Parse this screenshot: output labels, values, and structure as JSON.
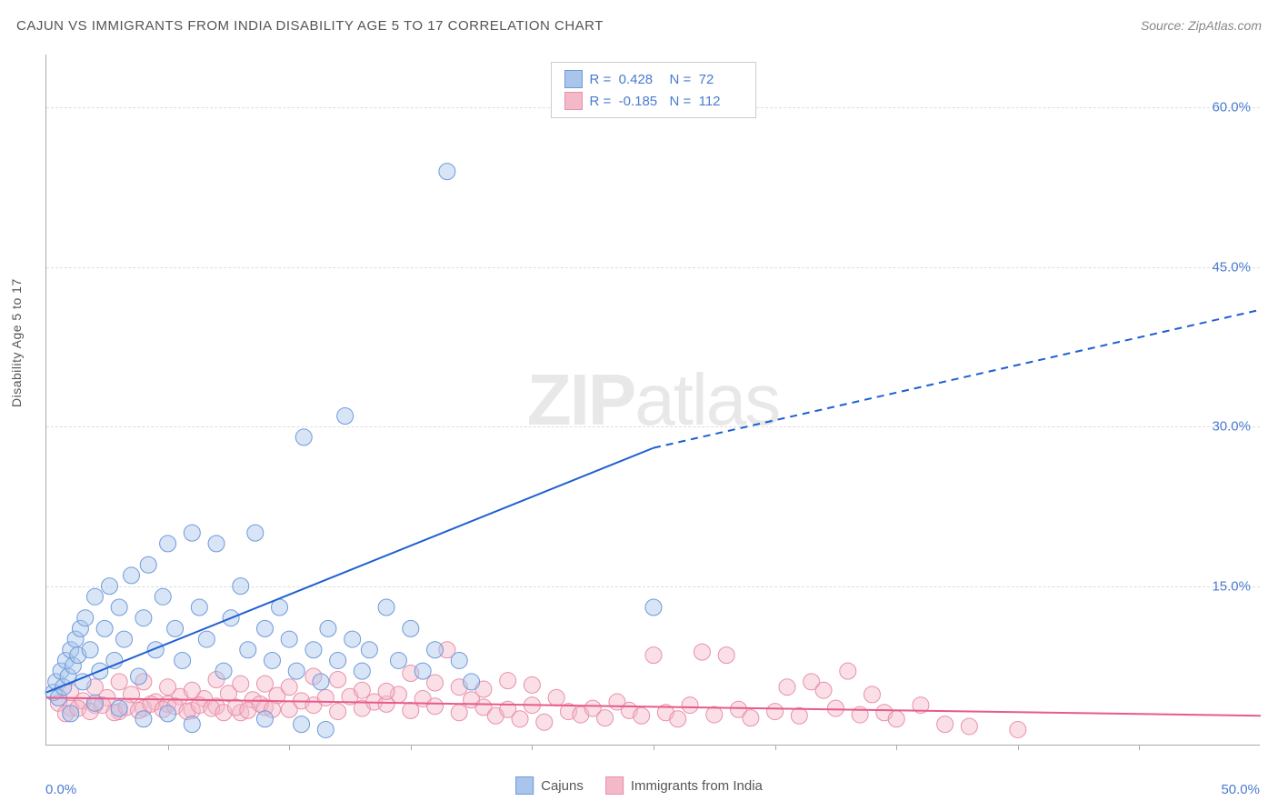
{
  "title": "CAJUN VS IMMIGRANTS FROM INDIA DISABILITY AGE 5 TO 17 CORRELATION CHART",
  "source_label": "Source:",
  "source_value": "ZipAtlas.com",
  "y_axis_label": "Disability Age 5 to 17",
  "watermark": {
    "part1": "ZIP",
    "part2": "atlas"
  },
  "chart": {
    "type": "scatter",
    "background_color": "#ffffff",
    "grid_color": "#dddddd",
    "axis_color": "#aaaaaa",
    "tick_label_color": "#4a7bd0",
    "xlim": [
      0,
      50
    ],
    "ylim": [
      0,
      65
    ],
    "y_ticks": [
      15,
      30,
      45,
      60
    ],
    "y_tick_labels": [
      "15.0%",
      "30.0%",
      "45.0%",
      "60.0%"
    ],
    "x_ticks": [
      5,
      10,
      15,
      20,
      25,
      30,
      35,
      40,
      45
    ],
    "x_label_min": "0.0%",
    "x_label_max": "50.0%",
    "marker_radius": 9,
    "marker_opacity": 0.45,
    "series": [
      {
        "name": "Cajuns",
        "color_fill": "#a9c5ec",
        "color_stroke": "#6f9ad8",
        "r_value": "0.428",
        "n_value": "72",
        "trend": {
          "color": "#1f5fd0",
          "width": 2,
          "x1": 0,
          "y1": 5.0,
          "x_solid_end": 25,
          "y_solid_end": 28.0,
          "x2": 50,
          "y2": 41.0
        },
        "points": [
          [
            0.3,
            5
          ],
          [
            0.4,
            6
          ],
          [
            0.5,
            4.5
          ],
          [
            0.6,
            7
          ],
          [
            0.7,
            5.5
          ],
          [
            0.8,
            8
          ],
          [
            0.9,
            6.5
          ],
          [
            1.0,
            9
          ],
          [
            1.1,
            7.5
          ],
          [
            1.2,
            10
          ],
          [
            1.3,
            8.5
          ],
          [
            1.4,
            11
          ],
          [
            1.5,
            6
          ],
          [
            1.6,
            12
          ],
          [
            1.8,
            9
          ],
          [
            2.0,
            14
          ],
          [
            2.2,
            7
          ],
          [
            2.4,
            11
          ],
          [
            2.6,
            15
          ],
          [
            2.8,
            8
          ],
          [
            3.0,
            13
          ],
          [
            3.2,
            10
          ],
          [
            3.5,
            16
          ],
          [
            3.8,
            6.5
          ],
          [
            4.0,
            12
          ],
          [
            4.2,
            17
          ],
          [
            4.5,
            9
          ],
          [
            4.8,
            14
          ],
          [
            5.0,
            19
          ],
          [
            5.3,
            11
          ],
          [
            5.6,
            8
          ],
          [
            6.0,
            20
          ],
          [
            6.3,
            13
          ],
          [
            6.6,
            10
          ],
          [
            7.0,
            19
          ],
          [
            7.3,
            7
          ],
          [
            7.6,
            12
          ],
          [
            8.0,
            15
          ],
          [
            8.3,
            9
          ],
          [
            8.6,
            20
          ],
          [
            9.0,
            11
          ],
          [
            9.3,
            8
          ],
          [
            9.6,
            13
          ],
          [
            10.0,
            10
          ],
          [
            10.3,
            7
          ],
          [
            10.6,
            29
          ],
          [
            11.0,
            9
          ],
          [
            11.3,
            6
          ],
          [
            11.6,
            11
          ],
          [
            12.0,
            8
          ],
          [
            12.3,
            31
          ],
          [
            12.6,
            10
          ],
          [
            13.0,
            7
          ],
          [
            13.3,
            9
          ],
          [
            14.0,
            13
          ],
          [
            14.5,
            8
          ],
          [
            15.0,
            11
          ],
          [
            15.5,
            7
          ],
          [
            16.0,
            9
          ],
          [
            16.5,
            54
          ],
          [
            17.0,
            8
          ],
          [
            17.5,
            6
          ],
          [
            25.0,
            13
          ],
          [
            1.0,
            3
          ],
          [
            2.0,
            4
          ],
          [
            3.0,
            3.5
          ],
          [
            4.0,
            2.5
          ],
          [
            5.0,
            3
          ],
          [
            6.0,
            2
          ],
          [
            9.0,
            2.5
          ],
          [
            10.5,
            2
          ],
          [
            11.5,
            1.5
          ]
        ]
      },
      {
        "name": "Immigrants from India",
        "color_fill": "#f4b9c9",
        "color_stroke": "#e890aa",
        "r_value": "-0.185",
        "n_value": "112",
        "trend": {
          "color": "#e85a8a",
          "width": 2,
          "x1": 0,
          "y1": 4.5,
          "x_solid_end": 50,
          "y_solid_end": 2.8,
          "x2": 50,
          "y2": 2.8
        },
        "points": [
          [
            0.5,
            4
          ],
          [
            1.0,
            3.5
          ],
          [
            1.5,
            4.2
          ],
          [
            2.0,
            3.8
          ],
          [
            2.5,
            4.5
          ],
          [
            3.0,
            3.2
          ],
          [
            3.5,
            4.8
          ],
          [
            4.0,
            3.5
          ],
          [
            4.5,
            4.1
          ],
          [
            5.0,
            3.9
          ],
          [
            5.5,
            4.6
          ],
          [
            6.0,
            3.3
          ],
          [
            6.5,
            4.4
          ],
          [
            7.0,
            3.7
          ],
          [
            7.5,
            4.9
          ],
          [
            8.0,
            3.1
          ],
          [
            8.5,
            4.3
          ],
          [
            9.0,
            3.6
          ],
          [
            9.5,
            4.7
          ],
          [
            10.0,
            3.4
          ],
          [
            10.5,
            4.2
          ],
          [
            11.0,
            3.8
          ],
          [
            11.5,
            4.5
          ],
          [
            12.0,
            3.2
          ],
          [
            12.5,
            4.6
          ],
          [
            13.0,
            3.5
          ],
          [
            13.5,
            4.1
          ],
          [
            14.0,
            3.9
          ],
          [
            14.5,
            4.8
          ],
          [
            15.0,
            3.3
          ],
          [
            15.5,
            4.4
          ],
          [
            16.0,
            3.7
          ],
          [
            16.5,
            9.0
          ],
          [
            17.0,
            3.1
          ],
          [
            17.5,
            4.3
          ],
          [
            18.0,
            3.6
          ],
          [
            18.5,
            2.8
          ],
          [
            19.0,
            3.4
          ],
          [
            19.5,
            2.5
          ],
          [
            20.0,
            3.8
          ],
          [
            20.5,
            2.2
          ],
          [
            21.0,
            4.5
          ],
          [
            21.5,
            3.2
          ],
          [
            22.0,
            2.9
          ],
          [
            22.5,
            3.5
          ],
          [
            23.0,
            2.6
          ],
          [
            23.5,
            4.1
          ],
          [
            24.0,
            3.3
          ],
          [
            24.5,
            2.8
          ],
          [
            25.0,
            8.5
          ],
          [
            25.5,
            3.1
          ],
          [
            26.0,
            2.5
          ],
          [
            26.5,
            3.8
          ],
          [
            27.0,
            8.8
          ],
          [
            27.5,
            2.9
          ],
          [
            28.0,
            8.5
          ],
          [
            28.5,
            3.4
          ],
          [
            29.0,
            2.6
          ],
          [
            30.0,
            3.2
          ],
          [
            30.5,
            5.5
          ],
          [
            31.0,
            2.8
          ],
          [
            31.5,
            6.0
          ],
          [
            32.0,
            5.2
          ],
          [
            32.5,
            3.5
          ],
          [
            33.0,
            7.0
          ],
          [
            33.5,
            2.9
          ],
          [
            34.0,
            4.8
          ],
          [
            34.5,
            3.1
          ],
          [
            35.0,
            2.5
          ],
          [
            36.0,
            3.8
          ],
          [
            37.0,
            2.0
          ],
          [
            38.0,
            1.8
          ],
          [
            40.0,
            1.5
          ],
          [
            3.0,
            6
          ],
          [
            5.0,
            5.5
          ],
          [
            7.0,
            6.2
          ],
          [
            9.0,
            5.8
          ],
          [
            11.0,
            6.5
          ],
          [
            13.0,
            5.2
          ],
          [
            15.0,
            6.8
          ],
          [
            17.0,
            5.5
          ],
          [
            19.0,
            6.1
          ],
          [
            1.0,
            5
          ],
          [
            2.0,
            5.5
          ],
          [
            4.0,
            6
          ],
          [
            6.0,
            5.2
          ],
          [
            8.0,
            5.8
          ],
          [
            10.0,
            5.5
          ],
          [
            12.0,
            6.2
          ],
          [
            14.0,
            5.1
          ],
          [
            16.0,
            5.9
          ],
          [
            18.0,
            5.3
          ],
          [
            20.0,
            5.7
          ],
          [
            0.8,
            3
          ],
          [
            1.3,
            3.5
          ],
          [
            1.8,
            3.2
          ],
          [
            2.3,
            3.8
          ],
          [
            2.8,
            3.1
          ],
          [
            3.3,
            3.6
          ],
          [
            3.8,
            3.3
          ],
          [
            4.3,
            3.9
          ],
          [
            4.8,
            3.4
          ],
          [
            5.3,
            3.7
          ],
          [
            5.8,
            3.2
          ],
          [
            6.3,
            3.8
          ],
          [
            6.8,
            3.5
          ],
          [
            7.3,
            3.1
          ],
          [
            7.8,
            3.6
          ],
          [
            8.3,
            3.3
          ],
          [
            8.8,
            3.9
          ],
          [
            9.3,
            3.4
          ]
        ]
      }
    ]
  },
  "legend_top": {
    "r_prefix": "R =",
    "n_prefix": "N ="
  },
  "legend_bottom": [
    {
      "label": "Cajuns",
      "swatch_fill": "#a9c5ec",
      "swatch_stroke": "#6f9ad8"
    },
    {
      "label": "Immigrants from India",
      "swatch_fill": "#f4b9c9",
      "swatch_stroke": "#e890aa"
    }
  ]
}
